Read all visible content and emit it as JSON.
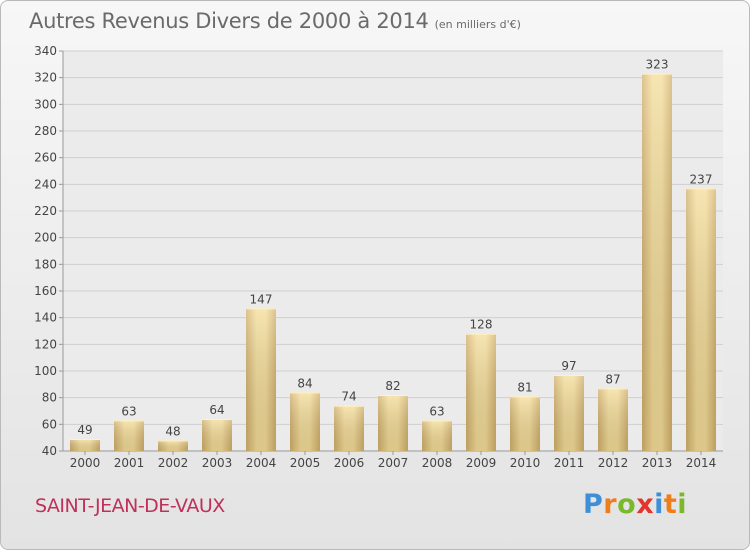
{
  "header": {
    "title": "Autres Revenus Divers de 2000 à 2014",
    "unit": "(en milliers d'€)"
  },
  "footer": {
    "place": "SAINT-JEAN-DE-VAUX",
    "logo": "Proxiti"
  },
  "colors": {
    "bar_light": "#f5dd98",
    "bar_dark": "#d2b06a",
    "title": "#6a6a6a",
    "place": "#c0305a",
    "logo": [
      "#3e8ed8",
      "#ef7d1a",
      "#7ab929",
      "#e3352b",
      "#3e8ed8",
      "#ef7d1a",
      "#7ab929"
    ]
  },
  "chart_data": {
    "type": "bar",
    "title": "Autres Revenus Divers de 2000 à 2014",
    "subtitle": "(en milliers d'€)",
    "xlabel": "",
    "ylabel": "",
    "categories": [
      "2000",
      "2001",
      "2002",
      "2003",
      "2004",
      "2005",
      "2006",
      "2007",
      "2008",
      "2009",
      "2010",
      "2011",
      "2012",
      "2013",
      "2014"
    ],
    "values": [
      49,
      63,
      48,
      64,
      147,
      84,
      74,
      82,
      63,
      128,
      81,
      97,
      87,
      323,
      237
    ],
    "ylim": [
      40,
      340
    ],
    "yticks": [
      40,
      60,
      80,
      100,
      120,
      140,
      160,
      180,
      200,
      220,
      240,
      260,
      280,
      300,
      320,
      340
    ],
    "grid": true,
    "data_labels": true
  }
}
